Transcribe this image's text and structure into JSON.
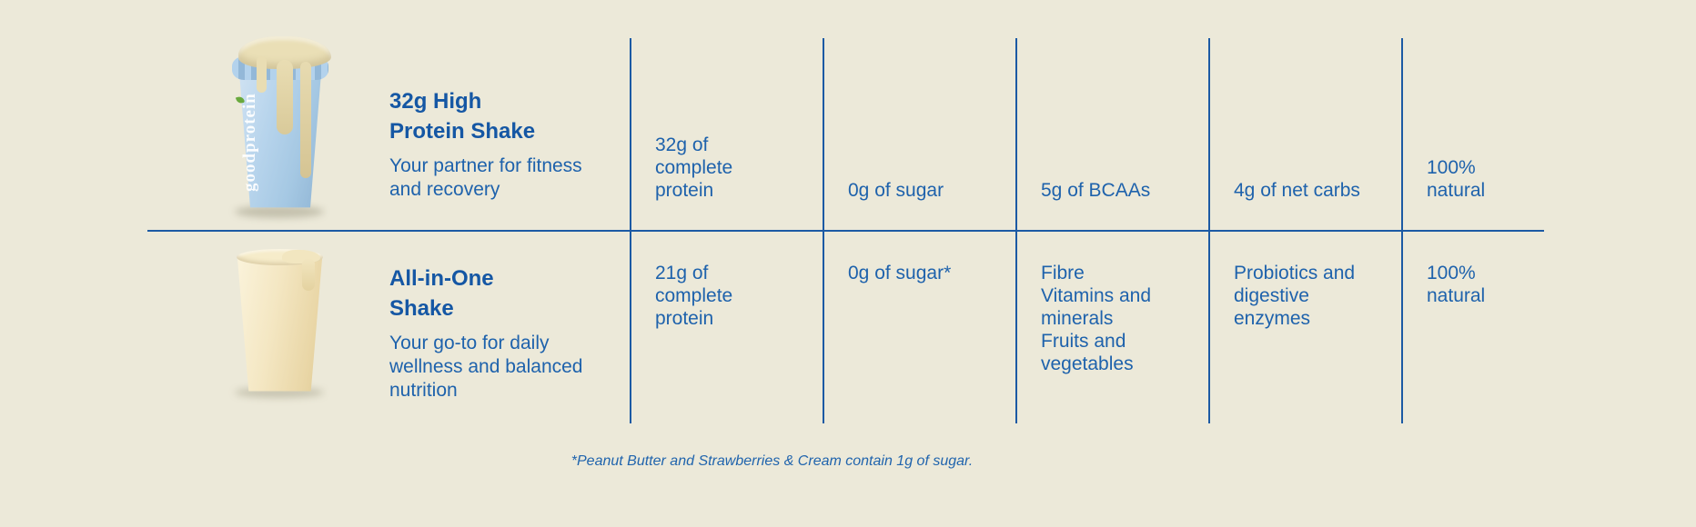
{
  "page": {
    "background_color": "#ece9d9",
    "accent_blue": "#1c5aa4"
  },
  "comparison_table": {
    "products": [
      {
        "image_alt": "blue-protein-shaker-with-cream-drip",
        "bottle_wordmark": "goodprotein",
        "name": "32g High\nProtein Shake",
        "tagline": "Your partner for fitness\nand recovery",
        "stats": [
          "32g of\ncomplete\nprotein",
          "0g of sugar",
          "5g of BCAAs",
          "4g of net carbs",
          "100%\nnatural"
        ]
      },
      {
        "image_alt": "cream-all-in-one-shake-glass",
        "name": "All-in-One\nShake",
        "tagline": "Your go-to for daily\nwellness and balanced\nnutrition",
        "stats": [
          "21g of\ncomplete\nprotein",
          "0g of sugar*",
          "Fibre\nVitamins and\nminerals\nFruits and\nvegetables",
          "Probiotics and\ndigestive\nenzymes",
          "100%\nnatural"
        ]
      }
    ],
    "footnote": "*Peanut Butter and Strawberries & Cream contain 1g of sugar."
  }
}
